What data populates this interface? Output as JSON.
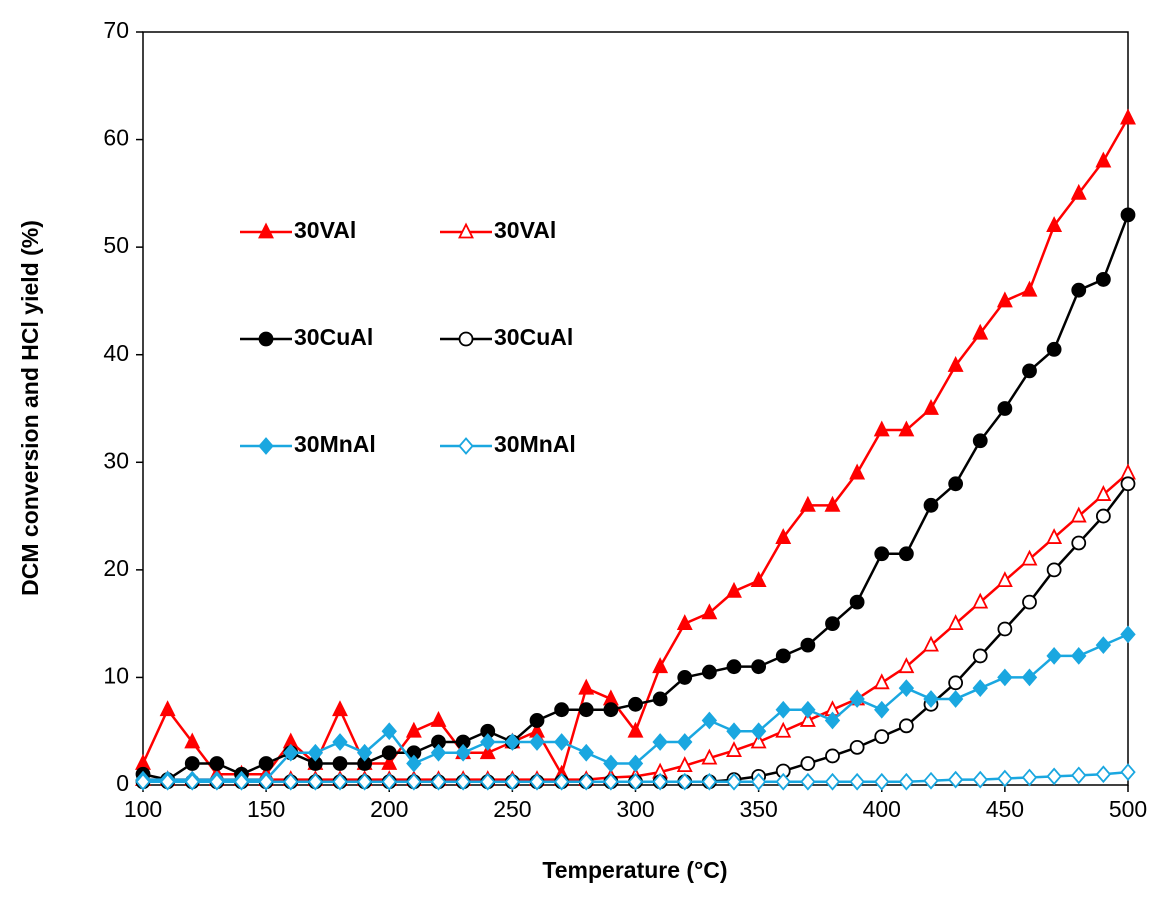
{
  "chart_data": {
    "type": "line",
    "xlabel": "Temperature (°C)",
    "ylabel": "DCM conversion and HCl yield (%)",
    "x": [
      100,
      110,
      120,
      130,
      140,
      150,
      160,
      170,
      180,
      190,
      200,
      210,
      220,
      230,
      240,
      250,
      260,
      270,
      280,
      290,
      300,
      310,
      320,
      330,
      340,
      350,
      360,
      370,
      380,
      390,
      400,
      410,
      420,
      430,
      440,
      450,
      460,
      470,
      480,
      490,
      500
    ],
    "xlim": [
      100,
      500
    ],
    "xticks": [
      100,
      150,
      200,
      250,
      300,
      350,
      400,
      450,
      500
    ],
    "ylim": [
      0,
      70
    ],
    "yticks": [
      0,
      10,
      20,
      30,
      40,
      50,
      60,
      70
    ],
    "series": [
      {
        "name": "30VAl",
        "color": "#ff0000",
        "marker": "triangle",
        "filled": true,
        "values": [
          2,
          7,
          4,
          1,
          1,
          1,
          4,
          2,
          7,
          2,
          2,
          5,
          6,
          3,
          3,
          4,
          5,
          1,
          9,
          8,
          5,
          11,
          15,
          16,
          18,
          19,
          23,
          26,
          26,
          29,
          33,
          33,
          35,
          39,
          42,
          45,
          46,
          52,
          55,
          58,
          62
        ]
      },
      {
        "name": "30VAl",
        "color": "#ff0000",
        "marker": "triangle",
        "filled": false,
        "values": [
          0.5,
          0.5,
          0.5,
          0.5,
          0.5,
          0.5,
          0.5,
          0.5,
          0.5,
          0.5,
          0.5,
          0.5,
          0.5,
          0.5,
          0.5,
          0.5,
          0.5,
          0.5,
          0.5,
          0.7,
          0.8,
          1.2,
          1.8,
          2.5,
          3.2,
          4,
          5,
          6,
          7,
          8,
          9.5,
          11,
          13,
          15,
          17,
          19,
          21,
          23,
          25,
          27,
          29
        ]
      },
      {
        "name": "30CuAl",
        "color": "#000000",
        "marker": "circle",
        "filled": true,
        "values": [
          1,
          0.5,
          2,
          2,
          1,
          2,
          3,
          2,
          2,
          2,
          3,
          3,
          4,
          4,
          5,
          4,
          6,
          7,
          7,
          7,
          7.5,
          8,
          10,
          10.5,
          11,
          11,
          12,
          13,
          15,
          17,
          21.5,
          21.5,
          26,
          28,
          32,
          35,
          38.5,
          40.5,
          46,
          47,
          53
        ]
      },
      {
        "name": "30CuAl",
        "color": "#000000",
        "marker": "circle",
        "filled": false,
        "values": [
          0.3,
          0.3,
          0.3,
          0.3,
          0.3,
          0.3,
          0.3,
          0.3,
          0.3,
          0.3,
          0.3,
          0.3,
          0.3,
          0.3,
          0.3,
          0.3,
          0.3,
          0.3,
          0.3,
          0.3,
          0.3,
          0.3,
          0.3,
          0.3,
          0.5,
          0.8,
          1.3,
          2,
          2.7,
          3.5,
          4.5,
          5.5,
          7.5,
          9.5,
          12,
          14.5,
          17,
          20,
          22.5,
          25,
          28
        ]
      },
      {
        "name": "30MnAl",
        "color": "#1aa7e0",
        "marker": "diamond",
        "filled": true,
        "values": [
          0.5,
          0.5,
          0.5,
          0.5,
          0.5,
          0.5,
          3,
          3,
          4,
          3,
          5,
          2,
          3,
          3,
          4,
          4,
          4,
          4,
          3,
          2,
          2,
          4,
          4,
          6,
          5,
          5,
          7,
          7,
          6,
          8,
          7,
          9,
          8,
          8,
          9,
          10,
          10,
          12,
          12,
          13,
          14
        ]
      },
      {
        "name": "30MnAl",
        "color": "#1aa7e0",
        "marker": "diamond",
        "filled": false,
        "values": [
          0.3,
          0.3,
          0.3,
          0.3,
          0.3,
          0.3,
          0.3,
          0.3,
          0.3,
          0.3,
          0.3,
          0.3,
          0.3,
          0.3,
          0.3,
          0.3,
          0.3,
          0.3,
          0.3,
          0.3,
          0.3,
          0.3,
          0.3,
          0.3,
          0.3,
          0.3,
          0.3,
          0.3,
          0.3,
          0.3,
          0.3,
          0.3,
          0.4,
          0.5,
          0.5,
          0.6,
          0.7,
          0.8,
          0.9,
          1.0,
          1.2
        ]
      }
    ]
  }
}
